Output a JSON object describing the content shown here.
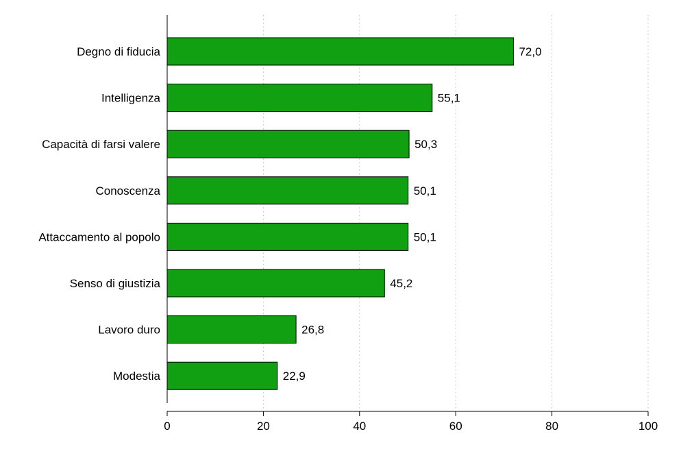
{
  "chart_data": {
    "type": "bar",
    "orientation": "horizontal",
    "categories": [
      "Degno di fiducia",
      "Intelligenza",
      "Capacità di farsi valere",
      "Conoscenza",
      "Attaccamento al popolo",
      "Senso di giustizia",
      "Lavoro duro",
      "Modestia"
    ],
    "values": [
      72.0,
      55.1,
      50.3,
      50.1,
      50.1,
      45.2,
      26.8,
      22.9
    ],
    "data_labels": [
      "72,0",
      "55,1",
      "50,3",
      "50,1",
      "50,1",
      "45,2",
      "26,8",
      "22,9"
    ],
    "xlim": [
      0,
      100
    ],
    "xticks": [
      0,
      20,
      40,
      60,
      80,
      100
    ],
    "xtick_labels": [
      "0",
      "20",
      "40",
      "60",
      "80",
      "100"
    ],
    "grid": "vertical dotted",
    "bar_color": "#11a011",
    "bar_edge_color": "#000000",
    "title": "",
    "xlabel": "",
    "ylabel": ""
  }
}
